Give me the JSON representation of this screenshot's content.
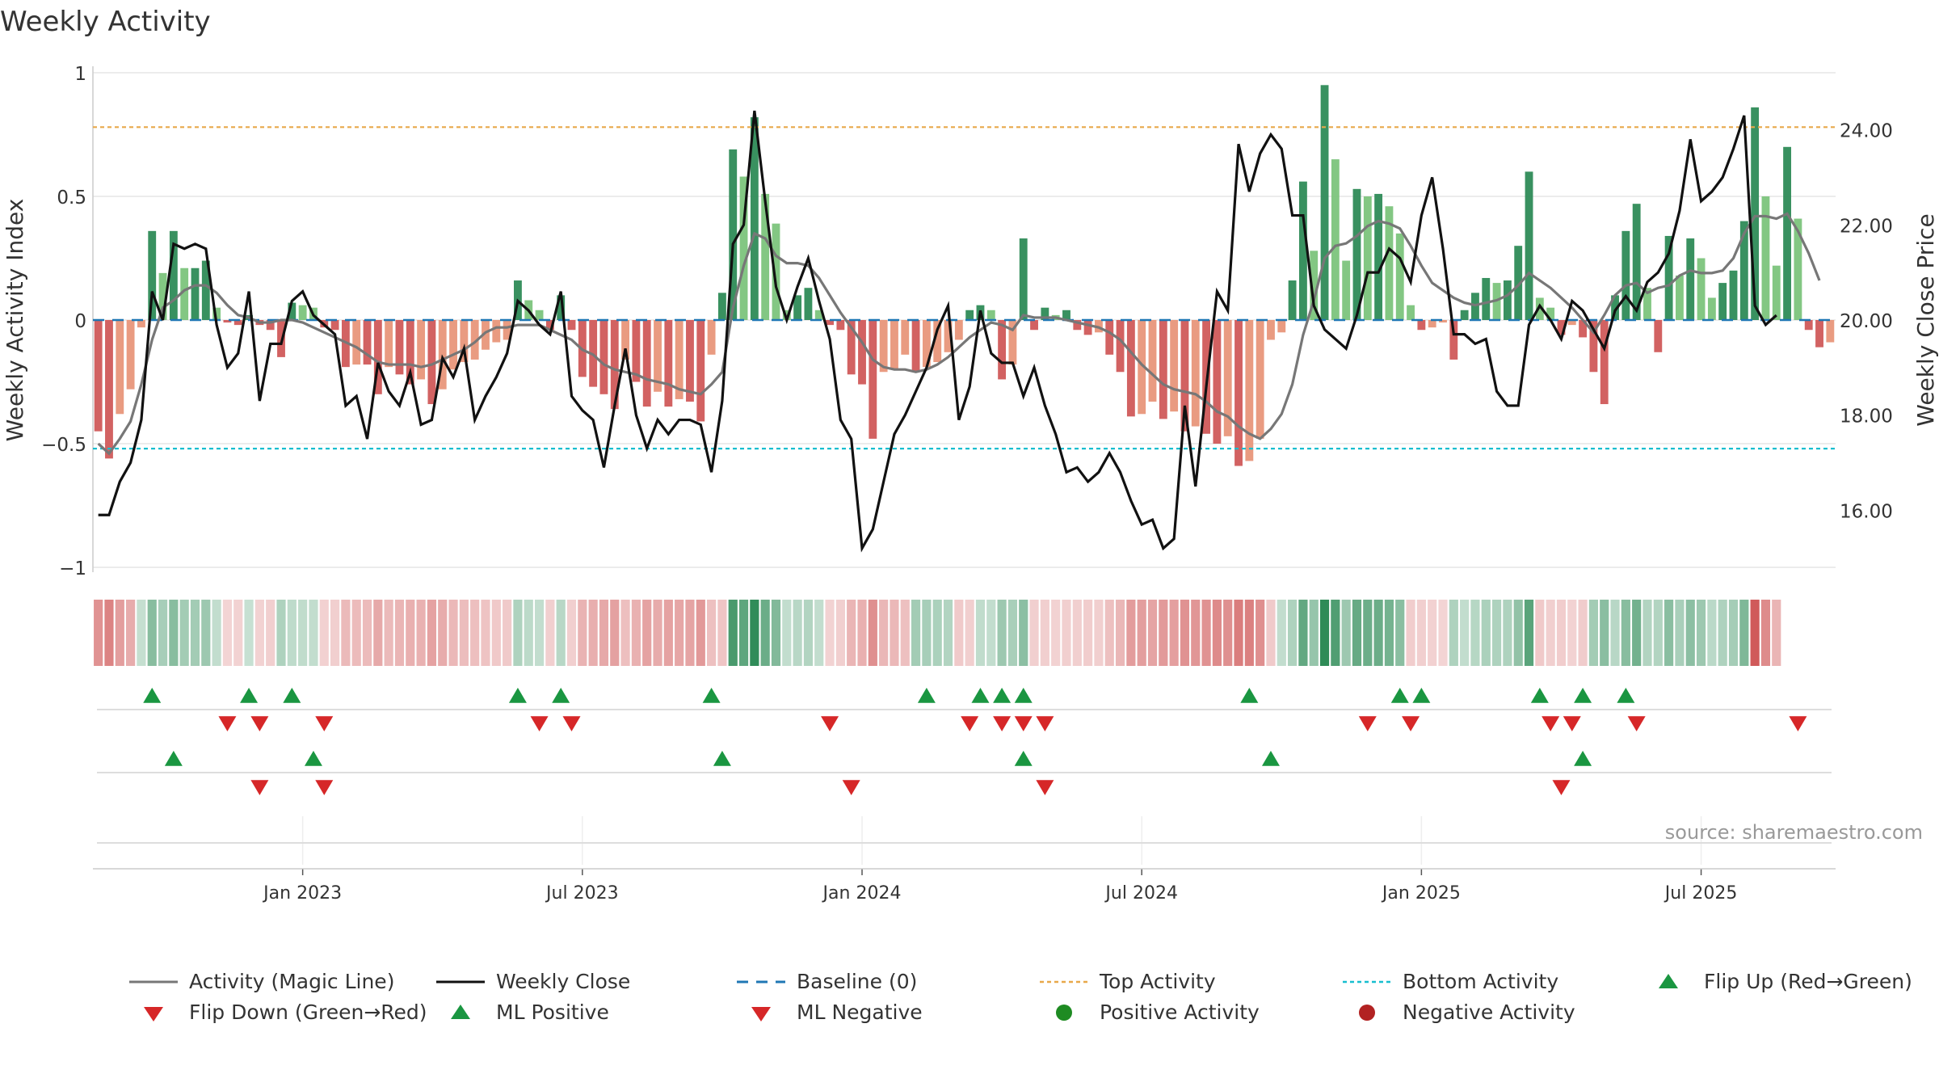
{
  "chart_data": {
    "type": "bar",
    "title": "Weekly Activity",
    "ylabel": "Weekly Activity Index",
    "ylabel_right": "Weekly Close Price",
    "source": "source: sharemaestro.com",
    "ylim": [
      -1,
      1
    ],
    "ylim_right": [
      14.8,
      25.2
    ],
    "y_ticks": [
      "1",
      "0.5",
      "0",
      "−0.5",
      "−1"
    ],
    "y_ticks_right": [
      "24.00",
      "22.00",
      "20.00",
      "18.00",
      "16.00"
    ],
    "x_ticks": [
      "Jan 2023",
      "Jul 2023",
      "Jan 2024",
      "Jul 2024",
      "Jan 2025",
      "Jul 2025"
    ],
    "top_activity": 0.78,
    "bottom_activity": -0.52,
    "weekly_activity": [
      -0.45,
      -0.56,
      -0.38,
      -0.28,
      -0.03,
      0.36,
      0.19,
      0.36,
      0.21,
      0.21,
      0.24,
      0.05,
      -0.01,
      -0.02,
      0.02,
      -0.02,
      -0.04,
      -0.15,
      0.07,
      0.06,
      0.05,
      -0.03,
      -0.04,
      -0.19,
      -0.18,
      -0.18,
      -0.3,
      -0.19,
      -0.22,
      -0.26,
      -0.24,
      -0.34,
      -0.28,
      -0.2,
      -0.17,
      -0.16,
      -0.12,
      -0.09,
      -0.08,
      0.16,
      0.08,
      0.04,
      -0.04,
      0.1,
      -0.04,
      -0.23,
      -0.27,
      -0.3,
      -0.36,
      -0.16,
      -0.25,
      -0.35,
      -0.29,
      -0.35,
      -0.32,
      -0.33,
      -0.41,
      -0.14,
      0.11,
      0.69,
      0.58,
      0.82,
      0.51,
      0.39,
      0.04,
      0.1,
      0.13,
      0.04,
      -0.02,
      -0.04,
      -0.22,
      -0.26,
      -0.48,
      -0.21,
      -0.2,
      -0.14,
      -0.21,
      -0.19,
      -0.17,
      -0.13,
      -0.08,
      0.04,
      0.06,
      0.04,
      -0.24,
      -0.18,
      0.33,
      -0.04,
      0.05,
      0.02,
      0.04,
      -0.04,
      -0.06,
      -0.05,
      -0.14,
      -0.21,
      -0.39,
      -0.38,
      -0.33,
      -0.4,
      -0.37,
      -0.45,
      -0.43,
      -0.46,
      -0.5,
      -0.47,
      -0.59,
      -0.57,
      -0.48,
      -0.08,
      -0.05,
      0.16,
      0.56,
      0.28,
      0.95,
      0.65,
      0.24,
      0.53,
      0.5,
      0.51,
      0.46,
      0.35,
      0.06,
      -0.04,
      -0.03,
      -0.01,
      -0.16,
      0.04,
      0.11,
      0.17,
      0.15,
      0.16,
      0.3,
      0.6,
      0.09,
      0.05,
      -0.06,
      -0.02,
      -0.07,
      -0.21,
      -0.34,
      0.1,
      0.36,
      0.47,
      0.13,
      -0.13,
      0.34,
      0.18,
      0.33,
      0.25,
      0.09,
      0.15,
      0.2,
      0.4,
      0.86,
      0.5,
      0.22,
      0.7,
      0.41,
      -0.04,
      -0.11,
      -0.09
    ],
    "magic_line": [
      -0.5,
      -0.54,
      -0.48,
      -0.41,
      -0.26,
      -0.08,
      0.05,
      0.08,
      0.12,
      0.14,
      0.14,
      0.11,
      0.06,
      0.02,
      0.01,
      -0.01,
      -0.01,
      0.0,
      0.0,
      -0.01,
      -0.03,
      -0.05,
      -0.07,
      -0.09,
      -0.11,
      -0.14,
      -0.17,
      -0.18,
      -0.18,
      -0.18,
      -0.19,
      -0.18,
      -0.16,
      -0.14,
      -0.12,
      -0.09,
      -0.05,
      -0.03,
      -0.03,
      -0.02,
      -0.02,
      -0.02,
      -0.04,
      -0.06,
      -0.08,
      -0.12,
      -0.14,
      -0.18,
      -0.2,
      -0.21,
      -0.22,
      -0.24,
      -0.25,
      -0.26,
      -0.28,
      -0.29,
      -0.3,
      -0.26,
      -0.21,
      0.05,
      0.22,
      0.35,
      0.33,
      0.26,
      0.23,
      0.23,
      0.22,
      0.17,
      0.1,
      0.03,
      -0.03,
      -0.09,
      -0.16,
      -0.19,
      -0.2,
      -0.2,
      -0.21,
      -0.2,
      -0.18,
      -0.15,
      -0.11,
      -0.07,
      -0.04,
      -0.01,
      -0.02,
      -0.04,
      0.02,
      0.01,
      0.01,
      0.01,
      0.0,
      -0.01,
      -0.02,
      -0.03,
      -0.05,
      -0.08,
      -0.13,
      -0.18,
      -0.22,
      -0.26,
      -0.28,
      -0.29,
      -0.3,
      -0.33,
      -0.37,
      -0.39,
      -0.43,
      -0.46,
      -0.48,
      -0.44,
      -0.38,
      -0.26,
      -0.06,
      0.08,
      0.25,
      0.3,
      0.31,
      0.34,
      0.38,
      0.4,
      0.39,
      0.37,
      0.3,
      0.22,
      0.15,
      0.12,
      0.09,
      0.07,
      0.06,
      0.07,
      0.08,
      0.1,
      0.14,
      0.19,
      0.16,
      0.13,
      0.09,
      0.05,
      0.0,
      -0.05,
      0.02,
      0.1,
      0.14,
      0.15,
      0.11,
      0.13,
      0.14,
      0.18,
      0.2,
      0.19,
      0.19,
      0.2,
      0.25,
      0.35,
      0.42,
      0.42,
      0.41,
      0.43,
      0.36,
      0.27,
      0.16
    ],
    "weekly_close": [
      15.9,
      15.9,
      16.6,
      17.0,
      17.9,
      20.6,
      20.0,
      21.6,
      21.5,
      21.6,
      21.5,
      19.9,
      19.0,
      19.3,
      20.6,
      18.3,
      19.5,
      19.5,
      20.4,
      20.6,
      20.1,
      19.9,
      19.7,
      18.2,
      18.4,
      17.5,
      19.1,
      18.5,
      18.2,
      18.9,
      17.8,
      17.9,
      19.2,
      18.8,
      19.4,
      17.9,
      18.4,
      18.8,
      19.3,
      20.4,
      20.2,
      19.9,
      19.7,
      20.6,
      18.4,
      18.1,
      17.9,
      16.9,
      18.2,
      19.4,
      18.0,
      17.3,
      17.9,
      17.6,
      17.9,
      17.9,
      17.8,
      16.8,
      18.3,
      21.6,
      22.0,
      24.4,
      22.5,
      20.7,
      20.0,
      20.7,
      21.3,
      20.4,
      19.6,
      17.9,
      17.5,
      15.2,
      15.6,
      16.6,
      17.6,
      18.0,
      18.5,
      19.0,
      19.8,
      20.3,
      17.9,
      18.6,
      20.2,
      19.3,
      19.1,
      19.1,
      18.4,
      19.0,
      18.2,
      17.6,
      16.8,
      16.9,
      16.6,
      16.8,
      17.2,
      16.8,
      16.2,
      15.7,
      15.8,
      15.2,
      15.4,
      18.2,
      16.5,
      18.6,
      20.6,
      20.2,
      23.7,
      22.7,
      23.5,
      23.9,
      23.6,
      22.2,
      22.2,
      20.3,
      19.8,
      19.6,
      19.4,
      20.1,
      21.0,
      21.0,
      21.5,
      21.3,
      20.8,
      22.2,
      23.0,
      21.5,
      19.7,
      19.7,
      19.5,
      19.6,
      18.5,
      18.2,
      18.2,
      19.9,
      20.3,
      20.0,
      19.6,
      20.4,
      20.2,
      19.8,
      19.4,
      20.2,
      20.5,
      20.2,
      20.8,
      21.0,
      21.4,
      22.3,
      23.8,
      22.5,
      22.7,
      23.0,
      23.6,
      24.3,
      20.3,
      19.9,
      20.1
    ],
    "color_strip": [
      "n",
      "n",
      "n",
      "n",
      "p",
      "p",
      "p",
      "p",
      "p",
      "p",
      "p",
      "p",
      "n",
      "n",
      "p",
      "n",
      "n",
      "p",
      "p",
      "p",
      "p",
      "n",
      "n",
      "n",
      "n",
      "n",
      "n",
      "n",
      "n",
      "n",
      "n",
      "n",
      "n",
      "n",
      "n",
      "n",
      "n",
      "n",
      "n",
      "p",
      "p",
      "p",
      "n",
      "p",
      "n",
      "n",
      "n",
      "n",
      "n",
      "n",
      "n",
      "n",
      "n",
      "n",
      "n",
      "n",
      "n",
      "n",
      "n",
      "p",
      "p",
      "p",
      "p",
      "p",
      "p",
      "p",
      "p",
      "p",
      "n",
      "n",
      "n",
      "n",
      "n",
      "n",
      "n",
      "n",
      "p",
      "p",
      "p",
      "p",
      "n",
      "n",
      "p",
      "p",
      "p",
      "p",
      "p",
      "n",
      "n",
      "n",
      "n",
      "n",
      "n",
      "n",
      "n",
      "n",
      "n",
      "n",
      "n",
      "n",
      "n",
      "n",
      "n",
      "n",
      "n",
      "n",
      "n",
      "n",
      "n",
      "n",
      "p",
      "p",
      "p",
      "p",
      "p",
      "p",
      "p",
      "p",
      "p",
      "p",
      "p",
      "p",
      "n",
      "n",
      "n",
      "n",
      "p",
      "p",
      "p",
      "p",
      "p",
      "p",
      "p",
      "p",
      "n",
      "n",
      "n",
      "n",
      "n",
      "p",
      "p",
      "p",
      "p",
      "p",
      "p",
      "p",
      "p",
      "p",
      "p",
      "p",
      "p",
      "p",
      "p",
      "p",
      "n",
      "n",
      "n"
    ],
    "flip_up": [
      5,
      14,
      18,
      39,
      43,
      57,
      77,
      82,
      84,
      86,
      107,
      121,
      123,
      134,
      138,
      142
    ],
    "flip_down": [
      12,
      15,
      21,
      41,
      44,
      68,
      81,
      84,
      86,
      88,
      118,
      122,
      135,
      137,
      143,
      158
    ],
    "ml_positive": [
      7,
      20,
      58,
      86,
      109,
      138
    ],
    "ml_negative": [
      15,
      21,
      70,
      88,
      136
    ],
    "legend": {
      "activity_line": "Activity (Magic Line)",
      "weekly_close": "Weekly Close",
      "baseline": "Baseline (0)",
      "top_activity": "Top Activity",
      "bottom_activity": "Bottom Activity",
      "flip_up": "Flip Up (Red→Green)",
      "flip_down": "Flip Down (Green→Red)",
      "ml_positive": "ML Positive",
      "ml_negative": "ML Negative",
      "positive_activity": "Positive Activity",
      "negative_activity": "Negative Activity"
    },
    "colors": {
      "pos_dark": "#2e8b57",
      "pos_light": "#7cc47c",
      "neg_dark": "#d05a5a",
      "neg_light": "#e8967a",
      "magic_line": "#777777",
      "close": "#111111",
      "baseline": "#1f77b4",
      "top": "#e8a84a",
      "bottom": "#17becf",
      "marker_up": "#1a9641",
      "marker_down": "#d62728",
      "legend_pos": "#1e8b22",
      "legend_neg": "#b22222"
    }
  }
}
